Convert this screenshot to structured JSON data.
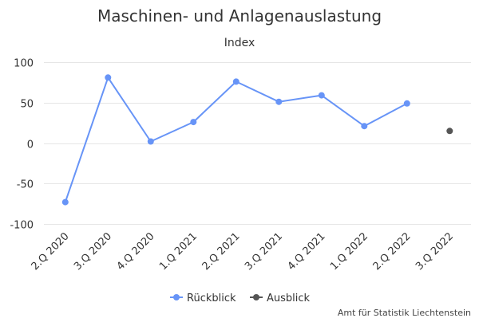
{
  "chart_data": {
    "type": "line",
    "title": "Maschinen- und Anlagenauslastung",
    "subtitle": "Index",
    "categories": [
      "2.Q 2020",
      "3.Q 2020",
      "4.Q 2020",
      "1.Q 2021",
      "2.Q 2021",
      "3.Q 2021",
      "4.Q 2021",
      "1.Q 2022",
      "2.Q 2022",
      "3.Q 2022"
    ],
    "series": [
      {
        "name": "Rückblick",
        "color": "#6794f7",
        "values": [
          -73,
          81,
          2,
          26,
          76,
          51,
          59,
          21,
          49,
          null
        ]
      },
      {
        "name": "Ausblick",
        "color": "#555555",
        "values": [
          null,
          null,
          null,
          null,
          null,
          null,
          null,
          null,
          null,
          15
        ]
      }
    ],
    "ylim": [
      -100,
      100
    ],
    "yticks": [
      -100,
      -50,
      0,
      50,
      100
    ],
    "ytick_labels": [
      "-100",
      "-50",
      "0",
      "50",
      "100"
    ],
    "grid": true,
    "legend": "bottom-center",
    "credits": "Amt für Statistik Liechtenstein"
  }
}
